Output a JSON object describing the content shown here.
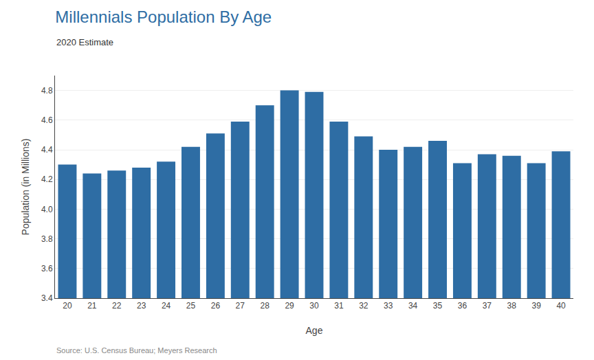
{
  "chart_data": {
    "type": "bar",
    "title": "Millennials Population By Age",
    "subtitle": "2020 Estimate",
    "xlabel": "Age",
    "ylabel": "Population (in Millions)",
    "annotations": [
      "Source: U.S. Census Bureau; Meyers Research"
    ],
    "categories": [
      20,
      21,
      22,
      23,
      24,
      25,
      26,
      27,
      28,
      29,
      30,
      31,
      32,
      33,
      34,
      35,
      36,
      37,
      38,
      39,
      40
    ],
    "values": [
      4.3,
      4.24,
      4.26,
      4.28,
      4.32,
      4.42,
      4.51,
      4.59,
      4.7,
      4.8,
      4.79,
      4.59,
      4.49,
      4.4,
      4.42,
      4.46,
      4.31,
      4.37,
      4.36,
      4.31,
      4.39
    ],
    "color": "#2E6DA4",
    "ylim": [
      3.4,
      4.9
    ],
    "yticks": [
      3.4,
      3.6,
      3.8,
      {
        "value": 4.0,
        "label": "4.0"
      },
      4.2,
      4.4,
      4.6,
      4.8
    ],
    "grid": true
  }
}
